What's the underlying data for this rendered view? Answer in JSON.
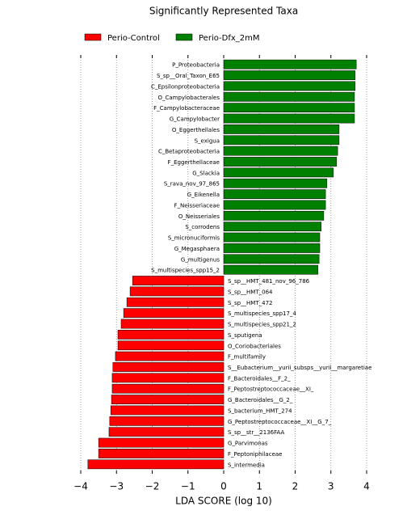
{
  "chart_data": {
    "type": "bar",
    "orientation": "horizontal",
    "title": "Significantly Represented Taxa",
    "x_label": "LDA SCORE (log 10)",
    "categories": [
      "P_Proteobacteria",
      "S_sp__Oral_Taxon_E65",
      "C_Epsilonproteobacteria",
      "O_Campylobacterales",
      "F_Campylobacteraceae",
      "G_Campylobacter",
      "O_Eggerthellales",
      "S_exigua",
      "C_Betaproteobacteria",
      "F_Eggerthellaceae",
      "G_Slackia",
      "S_rava_nov_97_865",
      "G_Eikenella",
      "F_Neisseriaceae",
      "O_Neisseriales",
      "S_corrodens",
      "S_micronuciformis",
      "G_Megasphaera",
      "G_multigenus",
      "S_multispecies_spp15_2",
      "S_sp__HMT_481_nov_96_786",
      "S_sp__HMT_064",
      "S_sp__HMT_472",
      "S_multispecies_spp17_4",
      "S_multispecies_spp21_2",
      "S_sputigena",
      "O_Coriobacteriales",
      "F_multifamily",
      "S__Eubacterium__yurii_subsps__yurii__margaretiae",
      "F_Bacteroidales__F_2_",
      "F_Peptostreptococcaceae__XI_",
      "G_Bacteroidales__G_2_",
      "S_bacterium_HMT_274",
      "G_Peptostreptococcaceae__XI__G_7_",
      "S_sp__str__2136FAA",
      "G_Parvimonas",
      "F_Peptoniphilaceae",
      "S_intermedia"
    ],
    "series": [
      {
        "name": "Perio-Control",
        "color": "#ff0000",
        "values": [
          null,
          null,
          null,
          null,
          null,
          null,
          null,
          null,
          null,
          null,
          null,
          null,
          null,
          null,
          null,
          null,
          null,
          null,
          null,
          null,
          -2.55,
          -2.62,
          -2.71,
          -2.8,
          -2.87,
          -2.96,
          -2.96,
          -3.03,
          -3.1,
          -3.12,
          -3.12,
          -3.14,
          -3.16,
          -3.19,
          -3.21,
          -3.5,
          -3.5,
          -3.8
        ]
      },
      {
        "name": "Perio-Dfx_2mM",
        "color": "#008000",
        "values": [
          3.71,
          3.68,
          3.68,
          3.66,
          3.66,
          3.66,
          3.23,
          3.23,
          3.19,
          3.16,
          3.07,
          2.89,
          2.85,
          2.85,
          2.8,
          2.73,
          2.69,
          2.69,
          2.67,
          2.64,
          null,
          null,
          null,
          null,
          null,
          null,
          null,
          null,
          null,
          null,
          null,
          null,
          null,
          null,
          null,
          null,
          null,
          null
        ]
      }
    ],
    "xlim": [
      -4,
      4
    ],
    "xticks": [
      {
        "value": -4,
        "label": "−4"
      },
      {
        "value": -3,
        "label": "−3"
      },
      {
        "value": -2,
        "label": "−2"
      },
      {
        "value": -1,
        "label": "−1"
      },
      0,
      1,
      2,
      3,
      4
    ],
    "grid": true
  }
}
